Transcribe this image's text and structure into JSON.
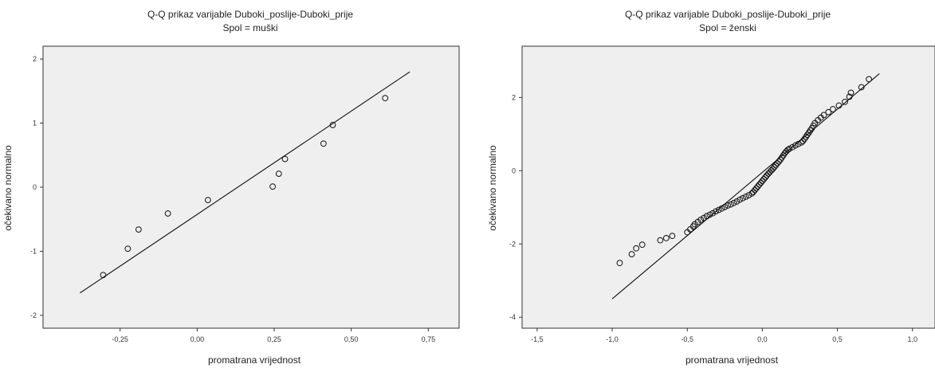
{
  "colors": {
    "plot_background": "#efefef",
    "line": "#111111",
    "marker_edge": "#111111"
  },
  "chart_data": [
    {
      "type": "scatter",
      "title": "Q-Q prikaz varijable Duboki_poslije-Duboki_prije",
      "subtitle": "Spol =  muški",
      "xlabel": "promatrana vrijednost",
      "ylabel": "očekivano normalno",
      "xlim": [
        -0.5,
        0.85
      ],
      "ylim": [
        -2.2,
        2.2
      ],
      "xticks": [
        -0.25,
        0.0,
        0.25,
        0.5,
        0.75
      ],
      "yticks": [
        -2,
        -1,
        0,
        1,
        2
      ],
      "xtick_labels": [
        "-0,25",
        "0,00",
        "0,25",
        "0,50",
        "0,75"
      ],
      "ytick_labels": [
        "-2",
        "-1",
        "0",
        "1",
        "2"
      ],
      "grid": false,
      "reference_line": {
        "x": [
          -0.38,
          0.69
        ],
        "y": [
          -1.65,
          1.8
        ]
      },
      "points": [
        {
          "x": -0.305,
          "y": -1.37
        },
        {
          "x": -0.225,
          "y": -0.96
        },
        {
          "x": -0.19,
          "y": -0.66
        },
        {
          "x": -0.095,
          "y": -0.41
        },
        {
          "x": 0.035,
          "y": -0.2
        },
        {
          "x": 0.245,
          "y": 0.01
        },
        {
          "x": 0.265,
          "y": 0.21
        },
        {
          "x": 0.285,
          "y": 0.44
        },
        {
          "x": 0.41,
          "y": 0.68
        },
        {
          "x": 0.44,
          "y": 0.97
        },
        {
          "x": 0.61,
          "y": 1.39
        }
      ]
    },
    {
      "type": "scatter",
      "title": "Q-Q prikaz varijable Duboki_poslije-Duboki_prije",
      "subtitle": "Spol = ženski",
      "xlabel": "promatrana vrijednost",
      "ylabel": "očekivano normalno",
      "xlim": [
        -1.6,
        1.15
      ],
      "ylim": [
        -4.3,
        3.4
      ],
      "xticks": [
        -1.5,
        -1.0,
        -0.5,
        0.0,
        0.5,
        1.0
      ],
      "yticks": [
        -4,
        -2,
        0,
        2
      ],
      "xtick_labels": [
        "-1,5",
        "-1,0",
        "-0,5",
        "0,0",
        "0,5",
        "1,0"
      ],
      "ytick_labels": [
        "-4",
        "-2",
        "0",
        "2"
      ],
      "grid": false,
      "reference_line": {
        "x": [
          -1.0,
          0.78
        ],
        "y": [
          -3.5,
          2.65
        ]
      },
      "points": [
        {
          "x": -0.95,
          "y": -2.52
        },
        {
          "x": -0.87,
          "y": -2.28
        },
        {
          "x": -0.84,
          "y": -2.12
        },
        {
          "x": -0.8,
          "y": -2.02
        },
        {
          "x": -0.68,
          "y": -1.9
        },
        {
          "x": -0.64,
          "y": -1.84
        },
        {
          "x": -0.6,
          "y": -1.78
        },
        {
          "x": -0.5,
          "y": -1.68
        },
        {
          "x": -0.48,
          "y": -1.6
        },
        {
          "x": -0.46,
          "y": -1.52
        },
        {
          "x": -0.45,
          "y": -1.46
        },
        {
          "x": -0.43,
          "y": -1.4
        },
        {
          "x": -0.41,
          "y": -1.34
        },
        {
          "x": -0.39,
          "y": -1.29
        },
        {
          "x": -0.37,
          "y": -1.24
        },
        {
          "x": -0.35,
          "y": -1.2
        },
        {
          "x": -0.33,
          "y": -1.16
        },
        {
          "x": -0.31,
          "y": -1.11
        },
        {
          "x": -0.29,
          "y": -1.07
        },
        {
          "x": -0.27,
          "y": -1.03
        },
        {
          "x": -0.25,
          "y": -0.99
        },
        {
          "x": -0.23,
          "y": -0.95
        },
        {
          "x": -0.21,
          "y": -0.92
        },
        {
          "x": -0.19,
          "y": -0.88
        },
        {
          "x": -0.17,
          "y": -0.84
        },
        {
          "x": -0.15,
          "y": -0.79
        },
        {
          "x": -0.13,
          "y": -0.75
        },
        {
          "x": -0.11,
          "y": -0.71
        },
        {
          "x": -0.09,
          "y": -0.67
        },
        {
          "x": -0.07,
          "y": -0.62
        },
        {
          "x": -0.06,
          "y": -0.58
        },
        {
          "x": -0.05,
          "y": -0.53
        },
        {
          "x": -0.04,
          "y": -0.48
        },
        {
          "x": -0.03,
          "y": -0.43
        },
        {
          "x": -0.02,
          "y": -0.38
        },
        {
          "x": -0.01,
          "y": -0.33
        },
        {
          "x": 0.0,
          "y": -0.28
        },
        {
          "x": 0.01,
          "y": -0.23
        },
        {
          "x": 0.02,
          "y": -0.18
        },
        {
          "x": 0.03,
          "y": -0.13
        },
        {
          "x": 0.04,
          "y": -0.08
        },
        {
          "x": 0.05,
          "y": -0.04
        },
        {
          "x": 0.06,
          "y": 0.01
        },
        {
          "x": 0.07,
          "y": 0.05
        },
        {
          "x": 0.08,
          "y": 0.1
        },
        {
          "x": 0.09,
          "y": 0.15
        },
        {
          "x": 0.1,
          "y": 0.2
        },
        {
          "x": 0.11,
          "y": 0.25
        },
        {
          "x": 0.12,
          "y": 0.3
        },
        {
          "x": 0.13,
          "y": 0.36
        },
        {
          "x": 0.14,
          "y": 0.42
        },
        {
          "x": 0.15,
          "y": 0.48
        },
        {
          "x": 0.16,
          "y": 0.53
        },
        {
          "x": 0.17,
          "y": 0.57
        },
        {
          "x": 0.18,
          "y": 0.6
        },
        {
          "x": 0.2,
          "y": 0.64
        },
        {
          "x": 0.22,
          "y": 0.69
        },
        {
          "x": 0.24,
          "y": 0.73
        },
        {
          "x": 0.26,
          "y": 0.77
        },
        {
          "x": 0.27,
          "y": 0.81
        },
        {
          "x": 0.28,
          "y": 0.86
        },
        {
          "x": 0.29,
          "y": 0.92
        },
        {
          "x": 0.3,
          "y": 0.98
        },
        {
          "x": 0.31,
          "y": 1.04
        },
        {
          "x": 0.32,
          "y": 1.1
        },
        {
          "x": 0.33,
          "y": 1.16
        },
        {
          "x": 0.34,
          "y": 1.23
        },
        {
          "x": 0.35,
          "y": 1.3
        },
        {
          "x": 0.37,
          "y": 1.38
        },
        {
          "x": 0.39,
          "y": 1.45
        },
        {
          "x": 0.41,
          "y": 1.52
        },
        {
          "x": 0.44,
          "y": 1.6
        },
        {
          "x": 0.47,
          "y": 1.68
        },
        {
          "x": 0.51,
          "y": 1.78
        },
        {
          "x": 0.55,
          "y": 1.88
        },
        {
          "x": 0.58,
          "y": 2.02
        },
        {
          "x": 0.59,
          "y": 2.13
        },
        {
          "x": 0.66,
          "y": 2.28
        },
        {
          "x": 0.71,
          "y": 2.5
        }
      ]
    }
  ]
}
